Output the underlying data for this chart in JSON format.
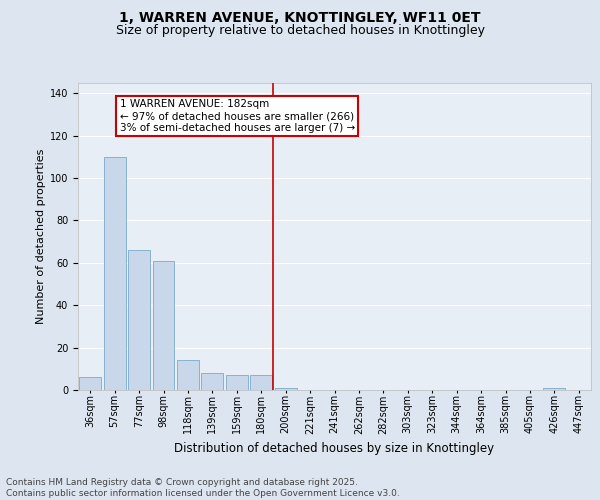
{
  "title": "1, WARREN AVENUE, KNOTTINGLEY, WF11 0ET",
  "subtitle": "Size of property relative to detached houses in Knottingley",
  "xlabel": "Distribution of detached houses by size in Knottingley",
  "ylabel": "Number of detached properties",
  "bins": [
    "36sqm",
    "57sqm",
    "77sqm",
    "98sqm",
    "118sqm",
    "139sqm",
    "159sqm",
    "180sqm",
    "200sqm",
    "221sqm",
    "241sqm",
    "262sqm",
    "282sqm",
    "303sqm",
    "323sqm",
    "344sqm",
    "364sqm",
    "385sqm",
    "405sqm",
    "426sqm",
    "447sqm"
  ],
  "values": [
    6,
    110,
    66,
    61,
    14,
    8,
    7,
    7,
    1,
    0,
    0,
    0,
    0,
    0,
    0,
    0,
    0,
    0,
    0,
    1,
    0
  ],
  "bar_color": "#c8d8ea",
  "bar_edge_color": "#7aaac8",
  "vline_bin_index": 7,
  "annotation_text": "1 WARREN AVENUE: 182sqm\n← 97% of detached houses are smaller (266)\n3% of semi-detached houses are larger (7) →",
  "annotation_box_facecolor": "#ffffff",
  "annotation_box_edgecolor": "#cc0000",
  "vline_color": "#cc0000",
  "ylim": [
    0,
    145
  ],
  "yticks": [
    0,
    20,
    40,
    60,
    80,
    100,
    120,
    140
  ],
  "background_color": "#dde6f0",
  "plot_background_color": "#e8eef6",
  "grid_color": "#ffffff",
  "footer_text": "Contains HM Land Registry data © Crown copyright and database right 2025.\nContains public sector information licensed under the Open Government Licence v3.0.",
  "title_fontsize": 10,
  "subtitle_fontsize": 9,
  "xlabel_fontsize": 8.5,
  "ylabel_fontsize": 8,
  "tick_fontsize": 7,
  "annotation_fontsize": 7.5,
  "footer_fontsize": 6.5
}
